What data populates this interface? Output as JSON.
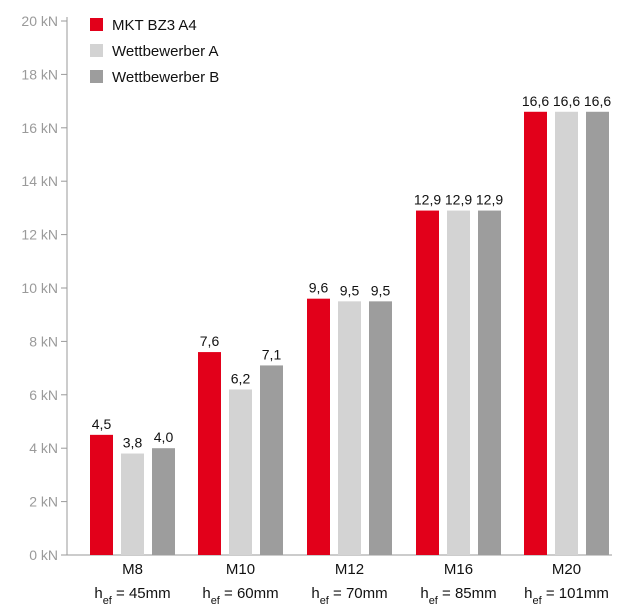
{
  "chart_data": {
    "type": "bar",
    "categories": [
      "M8",
      "M10",
      "M12",
      "M16",
      "M20"
    ],
    "category_sublabels": [
      {
        "prefix": "h",
        "sub": "ef",
        "suffix": " = 45mm"
      },
      {
        "prefix": "h",
        "sub": "ef",
        "suffix": " = 60mm"
      },
      {
        "prefix": "h",
        "sub": "ef",
        "suffix": " = 70mm"
      },
      {
        "prefix": "h",
        "sub": "ef",
        "suffix": " = 85mm"
      },
      {
        "prefix": "h",
        "sub": "ef",
        "suffix": " = 101mm"
      }
    ],
    "series": [
      {
        "name": "MKT BZ3 A4",
        "color": "#e2001a",
        "values": [
          4.5,
          7.6,
          9.6,
          12.9,
          16.6
        ],
        "labels": [
          "4,5",
          "7,6",
          "9,6",
          "12,9",
          "16,6"
        ]
      },
      {
        "name": "Wettbewerber A",
        "color": "#d3d3d3",
        "values": [
          3.8,
          6.2,
          9.5,
          12.9,
          16.6
        ],
        "labels": [
          "3,8",
          "6,2",
          "9,5",
          "12,9",
          "16,6"
        ]
      },
      {
        "name": "Wettbewerber B",
        "color": "#9d9d9d",
        "values": [
          4.0,
          7.1,
          9.5,
          12.9,
          16.6
        ],
        "labels": [
          "4,0",
          "7,1",
          "9,5",
          "12,9",
          "16,6"
        ]
      }
    ],
    "y_ticks": [
      0,
      2,
      4,
      6,
      8,
      10,
      12,
      14,
      16,
      18,
      20
    ],
    "y_tick_labels": [
      "0 kN",
      "2 kN",
      "4 kN",
      "6 kN",
      "8 kN",
      "10 kN",
      "12 kN",
      "14 kN",
      "16 kN",
      "18 kN",
      "20 kN"
    ],
    "ylim": [
      0,
      20
    ],
    "grid": false,
    "legend_position": "top-left",
    "title": "",
    "xlabel": "",
    "ylabel": ""
  }
}
